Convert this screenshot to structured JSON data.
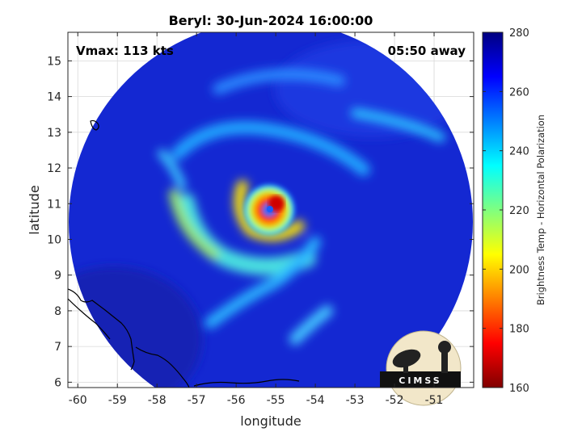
{
  "chart_data": {
    "type": "heatmap",
    "title": "Beryl: 30-Jun-2024 16:00:00",
    "xlabel": "longitude",
    "ylabel": "latitude",
    "xlim": [
      -60.25,
      -50.0
    ],
    "ylim": [
      5.85,
      15.8
    ],
    "xticks": [
      -60,
      -59,
      -58,
      -57,
      -56,
      -55,
      -54,
      -53,
      -52,
      -51
    ],
    "xtick_labels": [
      "-60",
      "-59",
      "-58",
      "-57",
      "-56",
      "-55",
      "-54",
      "-53",
      "-52",
      "-51"
    ],
    "yticks": [
      6,
      7,
      8,
      9,
      10,
      11,
      12,
      13,
      14,
      15
    ],
    "ytick_labels": [
      "6",
      "7",
      "8",
      "9",
      "10",
      "11",
      "12",
      "13",
      "14",
      "15"
    ],
    "grid": true,
    "colorbar": {
      "label": "Brightness Temp - Horizontal Polarization",
      "range": [
        160,
        280
      ],
      "ticks": [
        160,
        180,
        200,
        220,
        240,
        260,
        280
      ],
      "tick_labels": [
        "160",
        "180",
        "200",
        "220",
        "240",
        "260",
        "280"
      ],
      "colormap": "jet"
    },
    "storm_center": {
      "lon": -55.2,
      "lat": 10.9
    },
    "min_brightness_temp_approx": 165,
    "annotations": {
      "vmax": "Vmax: 113 kts",
      "time_offset": "05:50 away"
    }
  },
  "logo": {
    "text": "CIMSS"
  },
  "colors": {
    "background_cold": "#1428d2",
    "coastline": "#000000",
    "grid": "#d9d9d9"
  }
}
